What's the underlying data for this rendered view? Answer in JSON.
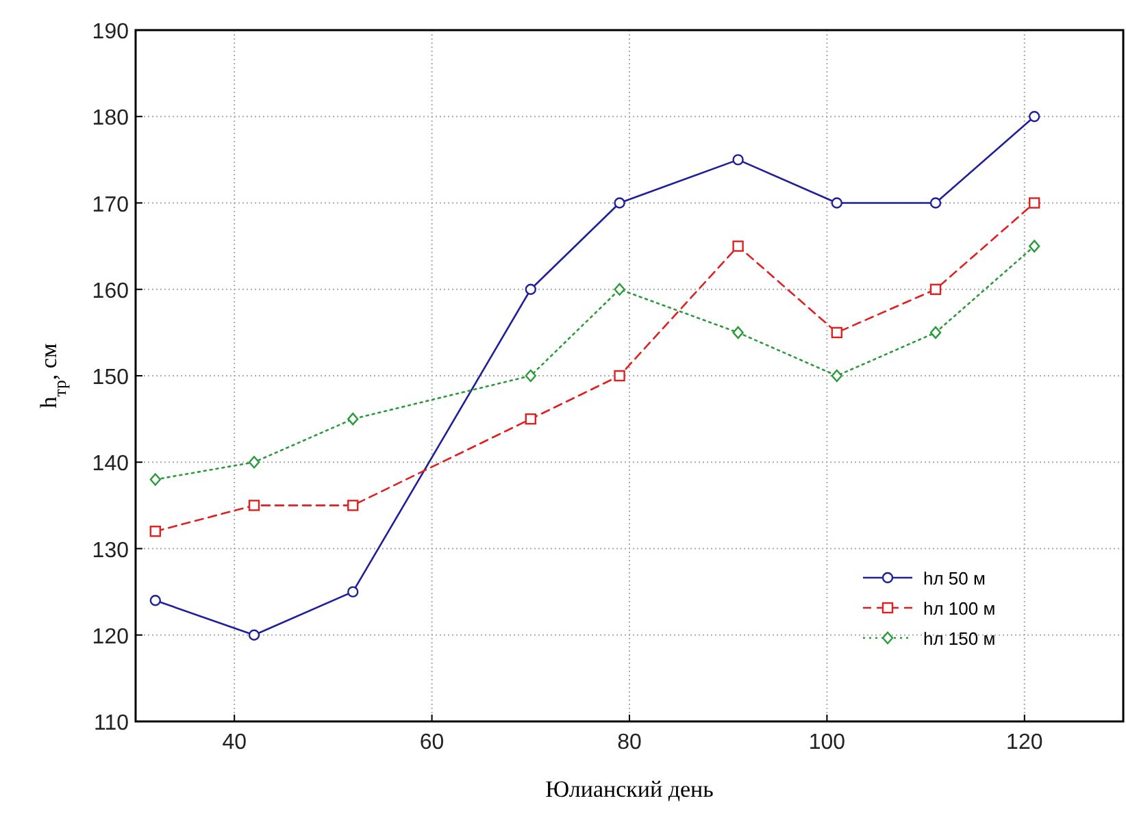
{
  "chart_data": {
    "type": "line",
    "xlabel": "Юлианский день",
    "ylabel": "h$_{тр}$, см",
    "xlim": [
      30,
      130
    ],
    "xticks": [
      40,
      60,
      80,
      100,
      120
    ],
    "ylim": [
      110,
      190
    ],
    "yticks": [
      110,
      120,
      130,
      140,
      150,
      160,
      170,
      180,
      190
    ],
    "grid": true,
    "legend": "bottom right",
    "series": [
      {
        "name": "hл 50 м",
        "color": "#1f1f9a",
        "marker": "circle",
        "line_style": "solid",
        "x": [
          32,
          42,
          52,
          70,
          79,
          91,
          101,
          111,
          121
        ],
        "values": [
          124,
          120,
          125,
          160,
          170,
          175,
          170,
          170,
          180
        ]
      },
      {
        "name": "hл 100 м",
        "color": "#e02020",
        "marker": "square",
        "line_style": "dashed",
        "x": [
          32,
          42,
          52,
          70,
          79,
          91,
          101,
          111,
          121
        ],
        "values": [
          132,
          135,
          135,
          145,
          150,
          165,
          155,
          160,
          170
        ]
      },
      {
        "name": "hл 150 м",
        "color": "#2a9a3a",
        "marker": "diamond",
        "line_style": "dotted",
        "x": [
          32,
          42,
          52,
          70,
          79,
          91,
          101,
          111,
          121
        ],
        "values": [
          138,
          140,
          145,
          150,
          160,
          155,
          150,
          155,
          165
        ]
      }
    ]
  }
}
